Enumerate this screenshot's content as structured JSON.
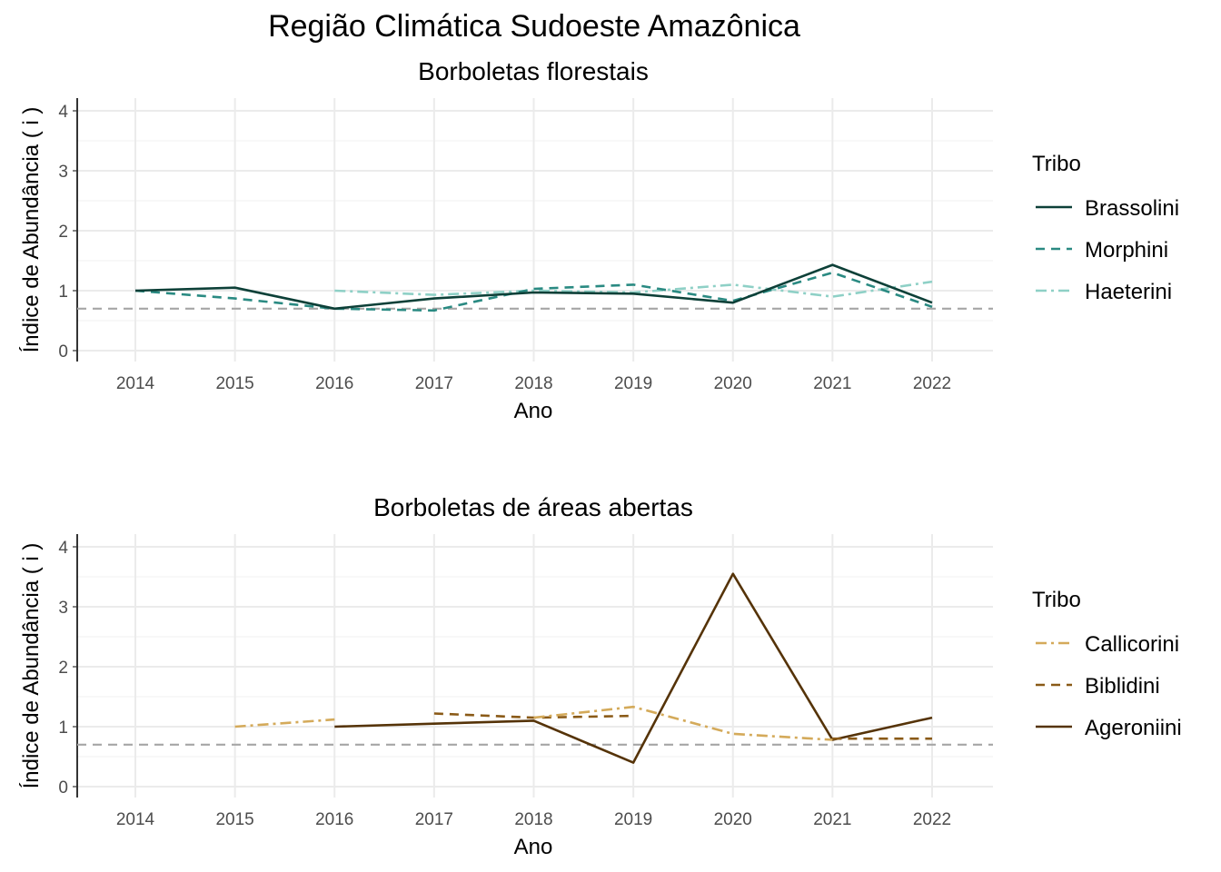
{
  "title": "Região Climática Sudoeste Amazônica",
  "reference_line": 0.7,
  "chart_data": [
    {
      "type": "line",
      "title": "Borboletas florestais",
      "xlabel": "Ano",
      "ylabel": "Índice de Abundância ( i )",
      "x": [
        2014,
        2015,
        2016,
        2017,
        2018,
        2019,
        2020,
        2021,
        2022
      ],
      "ylim": [
        0,
        4
      ],
      "yticks": [
        0,
        1,
        2,
        3,
        4
      ],
      "grid": true,
      "legend_title": "Tribo",
      "legend_position": "right",
      "series": [
        {
          "name": "Brassolini",
          "color": "#0d4038",
          "dash": "solid",
          "values": [
            1.0,
            1.05,
            0.7,
            0.87,
            0.97,
            0.95,
            0.8,
            1.43,
            0.8
          ]
        },
        {
          "name": "Morphini",
          "color": "#2a8a82",
          "dash": "dashed",
          "values": [
            1.0,
            0.87,
            0.7,
            0.67,
            1.03,
            1.1,
            0.83,
            1.3,
            0.73
          ]
        },
        {
          "name": "Haeterini",
          "color": "#8ed0c6",
          "dash": "dashdot",
          "values": [
            null,
            null,
            1.0,
            0.93,
            1.0,
            0.97,
            1.1,
            0.9,
            1.15
          ]
        }
      ]
    },
    {
      "type": "line",
      "title": "Borboletas de áreas abertas",
      "xlabel": "Ano",
      "ylabel": "Índice de Abundância ( i )",
      "x": [
        2014,
        2015,
        2016,
        2017,
        2018,
        2019,
        2020,
        2021,
        2022
      ],
      "ylim": [
        0,
        4
      ],
      "yticks": [
        0,
        1,
        2,
        3,
        4
      ],
      "grid": true,
      "legend_title": "Tribo",
      "legend_position": "right",
      "series": [
        {
          "name": "Callicorini",
          "color": "#d4aa5a",
          "dash": "dashdot",
          "values": [
            null,
            1.0,
            1.12,
            null,
            1.15,
            1.33,
            0.88,
            0.78,
            null
          ]
        },
        {
          "name": "Biblidini",
          "color": "#8a5a17",
          "dash": "dashed",
          "values": [
            null,
            null,
            null,
            1.22,
            1.15,
            1.18,
            null,
            0.8,
            0.8
          ]
        },
        {
          "name": "Ageroniini",
          "color": "#553308",
          "dash": "solid",
          "values": [
            null,
            null,
            1.0,
            1.05,
            1.1,
            0.4,
            3.55,
            0.78,
            1.15
          ]
        }
      ]
    }
  ]
}
